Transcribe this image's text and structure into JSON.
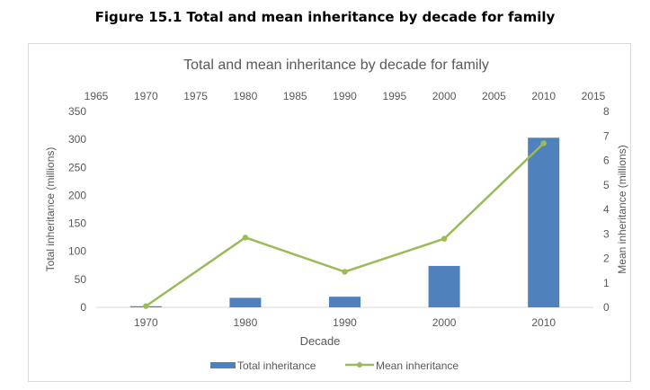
{
  "figure_caption": "Figure 15.1  Total and mean inheritance by decade for family",
  "chart_data": {
    "type": "bar",
    "title": "Total and mean inheritance by decade for family",
    "xlabel": "Decade",
    "ylabel": "Total inheritance (millions)",
    "y2label": "Mean inheritance (millions)",
    "categories": [
      "1970",
      "1980",
      "1990",
      "2000",
      "2010"
    ],
    "ylim": [
      0,
      350
    ],
    "yticks": [
      0,
      50,
      100,
      150,
      200,
      250,
      300,
      350
    ],
    "y2lim": [
      0,
      8
    ],
    "y2ticks": [
      0,
      1,
      2,
      3,
      4,
      5,
      6,
      7,
      8
    ],
    "x2lim": [
      1965,
      2015
    ],
    "x2ticks": [
      1965,
      1970,
      1975,
      1980,
      1985,
      1990,
      1995,
      2000,
      2005,
      2010,
      2015
    ],
    "series": [
      {
        "name": "Total inheritance",
        "type": "bar",
        "axis": "left",
        "color": "#4f81bd",
        "values": [
          2,
          17,
          19,
          74,
          303
        ]
      },
      {
        "name": "Mean inheritance",
        "type": "line",
        "axis": "right",
        "color": "#9bbb59",
        "x": [
          1970,
          1980,
          1990,
          2000,
          2010
        ],
        "values": [
          0.05,
          2.85,
          1.45,
          2.8,
          6.7
        ]
      }
    ],
    "legend_position": "bottom",
    "grid": false
  }
}
